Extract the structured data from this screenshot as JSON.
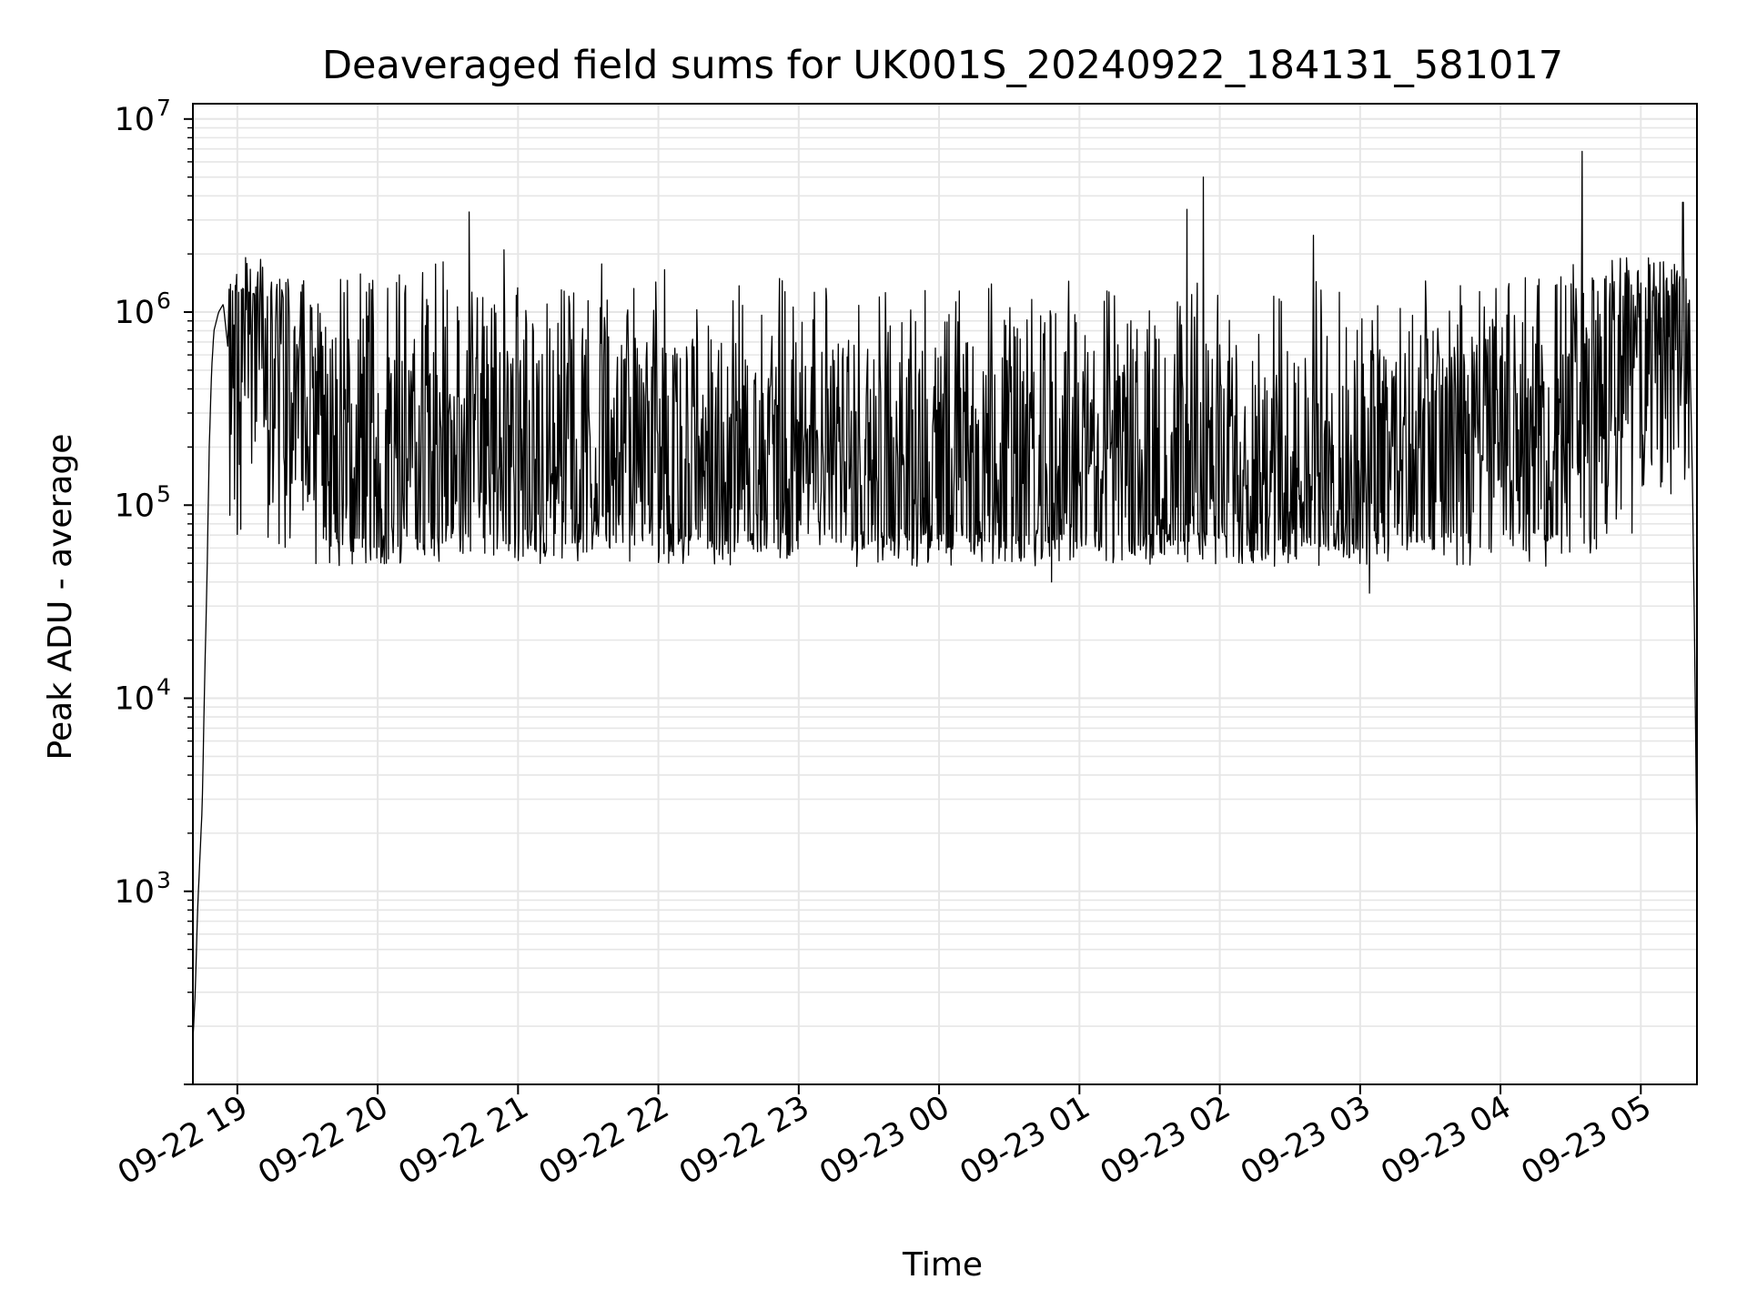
{
  "chart_data": {
    "type": "line",
    "title": "Deaveraged field sums for UK001S_20240922_184131_581017",
    "xlabel": "Time",
    "ylabel": "Peak ADU - average",
    "yscale": "log",
    "ylim": [
      100,
      12000000
    ],
    "xlim": [
      "2024-09-22 18:41",
      "2024-09-23 05:24"
    ],
    "grid": true,
    "legend": "none",
    "line_color": "#000000",
    "grid_color": "#e6e6e6",
    "x_ticks": [
      {
        "value": "2024-09-22 19:00",
        "label": "09-22 19"
      },
      {
        "value": "2024-09-22 20:00",
        "label": "09-22 20"
      },
      {
        "value": "2024-09-22 21:00",
        "label": "09-22 21"
      },
      {
        "value": "2024-09-22 22:00",
        "label": "09-22 22"
      },
      {
        "value": "2024-09-22 23:00",
        "label": "09-22 23"
      },
      {
        "value": "2024-09-23 00:00",
        "label": "09-23 00"
      },
      {
        "value": "2024-09-23 01:00",
        "label": "09-23 01"
      },
      {
        "value": "2024-09-23 02:00",
        "label": "09-23 02"
      },
      {
        "value": "2024-09-23 03:00",
        "label": "09-23 03"
      },
      {
        "value": "2024-09-23 04:00",
        "label": "09-23 04"
      },
      {
        "value": "2024-09-23 05:00",
        "label": "09-23 05"
      }
    ],
    "y_ticks": [
      {
        "value": 1000,
        "base": "10",
        "exp": "3"
      },
      {
        "value": 10000,
        "base": "10",
        "exp": "4"
      },
      {
        "value": 100000,
        "base": "10",
        "exp": "5"
      },
      {
        "value": 1000000,
        "base": "10",
        "exp": "6"
      },
      {
        "value": 10000000,
        "base": "10",
        "exp": "7"
      }
    ],
    "series": [
      {
        "points": [
          [
            "2024-09-22 18:41",
            170
          ],
          [
            "2024-09-22 18:42",
            300
          ],
          [
            "2024-09-22 18:43",
            800
          ],
          [
            "2024-09-22 18:44",
            1500
          ],
          [
            "2024-09-22 18:45",
            2800
          ],
          [
            "2024-09-22 18:46",
            12000
          ],
          [
            "2024-09-22 18:47",
            40000
          ],
          [
            "2024-09-22 18:48",
            200000
          ],
          [
            "2024-09-22 18:49",
            500000
          ],
          [
            "2024-09-22 18:50",
            800000
          ],
          [
            "2024-09-22 18:52",
            1000000
          ],
          [
            "2024-09-22 18:54",
            1100000
          ],
          [
            "2024-09-22 18:56",
            650000
          ],
          [
            "2024-09-22 19:00",
            600000
          ],
          [
            "2024-09-22 19:05",
            700000
          ],
          [
            "2024-09-22 19:10",
            900000
          ],
          [
            "2024-09-22 19:15",
            500000
          ],
          [
            "2024-09-22 19:20",
            350000
          ],
          [
            "2024-09-22 19:30",
            250000
          ],
          [
            "2024-09-22 19:40",
            180000
          ],
          [
            "2024-09-22 20:00",
            200000
          ],
          [
            "2024-09-22 20:30",
            220000
          ],
          [
            "2024-09-22 21:00",
            190000
          ],
          [
            "2024-09-22 21:30",
            170000
          ],
          [
            "2024-09-22 22:00",
            180000
          ],
          [
            "2024-09-22 22:30",
            175000
          ],
          [
            "2024-09-22 23:00",
            160000
          ],
          [
            "2024-09-22 23:30",
            150000
          ],
          [
            "2024-09-23 00:00",
            140000
          ],
          [
            "2024-09-23 00:30",
            150000
          ],
          [
            "2024-09-23 01:00",
            160000
          ],
          [
            "2024-09-23 01:30",
            160000
          ],
          [
            "2024-09-23 02:00",
            150000
          ],
          [
            "2024-09-23 02:30",
            150000
          ],
          [
            "2024-09-23 03:00",
            140000
          ],
          [
            "2024-09-23 03:30",
            180000
          ],
          [
            "2024-09-23 04:00",
            200000
          ],
          [
            "2024-09-23 04:30",
            350000
          ],
          [
            "2024-09-23 05:00",
            500000
          ],
          [
            "2024-09-23 05:15",
            700000
          ],
          [
            "2024-09-23 05:19",
            1000000
          ],
          [
            "2024-09-23 05:21",
            600000
          ],
          [
            "2024-09-23 05:22",
            150000
          ],
          [
            "2024-09-23 05:23",
            20000
          ],
          [
            "2024-09-23 05:24",
            1500
          ]
        ],
        "noise": {
          "lower_envelope": 60000,
          "upper_envelope": 1500000
        }
      }
    ],
    "spikes": [
      {
        "x": "2024-09-22 20:39",
        "y": 3300000
      },
      {
        "x": "2024-09-22 20:54",
        "y": 2100000
      },
      {
        "x": "2024-09-23 00:48",
        "y": 40000
      },
      {
        "x": "2024-09-23 01:46",
        "y": 3400000
      },
      {
        "x": "2024-09-23 01:53",
        "y": 5000000
      },
      {
        "x": "2024-09-23 02:40",
        "y": 2500000
      },
      {
        "x": "2024-09-23 03:04",
        "y": 35000
      },
      {
        "x": "2024-09-23 04:35",
        "y": 6800000
      },
      {
        "x": "2024-09-23 05:18",
        "y": 3700000
      }
    ]
  }
}
